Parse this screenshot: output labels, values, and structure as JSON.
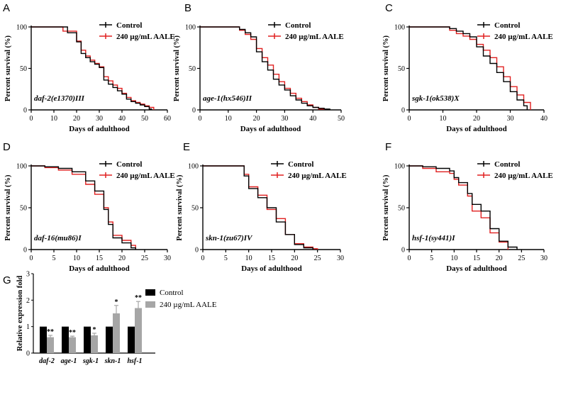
{
  "colors": {
    "control": "#000000",
    "treated": "#e02020",
    "bar_control": "#000000",
    "bar_treated": "#a6a6a6"
  },
  "legend": {
    "control": "Control",
    "treated": "240 µg/mL AALE"
  },
  "chart_data": [
    {
      "panel": "A",
      "type": "line",
      "annotation": "daf-2(e1370)III",
      "xlabel": "Days of adulthood",
      "ylabel": "Percent survival (%)",
      "xlim": [
        0,
        60
      ],
      "xticks": [
        0,
        10,
        20,
        30,
        40,
        50,
        60
      ],
      "ylim": [
        0,
        100
      ],
      "yticks": [
        0,
        50,
        100
      ],
      "series": [
        {
          "name": "Control",
          "x": [
            0,
            12,
            16,
            20,
            22,
            24,
            26,
            28,
            30,
            32,
            34,
            36,
            38,
            40,
            42,
            44,
            46,
            48,
            50,
            52,
            53
          ],
          "y": [
            100,
            100,
            93,
            82,
            68,
            63,
            58,
            55,
            51,
            36,
            31,
            27,
            23,
            19,
            13,
            10,
            8,
            6,
            4,
            1,
            0
          ]
        },
        {
          "name": "240 µg/mL AALE",
          "x": [
            0,
            12,
            14,
            20,
            22,
            24,
            26,
            28,
            30,
            32,
            34,
            36,
            38,
            40,
            42,
            44,
            46,
            48,
            50,
            52,
            54
          ],
          "y": [
            100,
            100,
            95,
            83,
            72,
            65,
            60,
            56,
            52,
            40,
            35,
            30,
            26,
            20,
            15,
            11,
            9,
            7,
            5,
            3,
            0
          ]
        }
      ]
    },
    {
      "panel": "B",
      "type": "line",
      "annotation": "age-1(hx546)II",
      "xlabel": "Days of adulthood",
      "ylabel": "Percent survival (%)",
      "xlim": [
        0,
        50
      ],
      "xticks": [
        0,
        10,
        20,
        30,
        40,
        50
      ],
      "ylim": [
        0,
        100
      ],
      "yticks": [
        0,
        50,
        100
      ],
      "series": [
        {
          "name": "Control",
          "x": [
            0,
            12,
            14,
            16,
            18,
            20,
            22,
            24,
            26,
            28,
            30,
            32,
            34,
            36,
            38,
            40,
            42,
            44,
            46
          ],
          "y": [
            100,
            100,
            97,
            93,
            88,
            70,
            58,
            48,
            37,
            30,
            24,
            17,
            12,
            8,
            5,
            3,
            2,
            1,
            0
          ]
        },
        {
          "name": "240 µg/mL AALE",
          "x": [
            0,
            12,
            14,
            16,
            18,
            20,
            22,
            24,
            26,
            28,
            30,
            32,
            34,
            36,
            38,
            40,
            42,
            44
          ],
          "y": [
            100,
            100,
            96,
            91,
            85,
            74,
            63,
            54,
            43,
            34,
            26,
            20,
            14,
            10,
            6,
            3,
            1,
            0
          ]
        }
      ]
    },
    {
      "panel": "C",
      "type": "line",
      "annotation": "sgk-1(ok538)X",
      "xlabel": "Days of adulthood",
      "ylabel": "Percent survival (%)",
      "xlim": [
        0,
        40
      ],
      "xticks": [
        0,
        10,
        20,
        30,
        40
      ],
      "ylim": [
        0,
        100
      ],
      "yticks": [
        0,
        50,
        100
      ],
      "series": [
        {
          "name": "Control",
          "x": [
            0,
            10,
            12,
            14,
            16,
            18,
            20,
            22,
            24,
            26,
            28,
            30,
            32,
            34,
            35
          ],
          "y": [
            100,
            100,
            98,
            95,
            92,
            88,
            76,
            65,
            56,
            45,
            34,
            22,
            12,
            5,
            0
          ]
        },
        {
          "name": "240 µg/mL AALE",
          "x": [
            0,
            10,
            12,
            14,
            16,
            18,
            20,
            22,
            24,
            26,
            28,
            30,
            32,
            34,
            36
          ],
          "y": [
            100,
            100,
            96,
            92,
            89,
            85,
            79,
            72,
            63,
            52,
            40,
            28,
            18,
            9,
            0
          ]
        }
      ]
    },
    {
      "panel": "D",
      "type": "line",
      "annotation": "daf-16(mu86)I",
      "xlabel": "Days of adulthood",
      "ylabel": "Percent survival (%)",
      "xlim": [
        0,
        30
      ],
      "xticks": [
        0,
        5,
        10,
        15,
        20,
        25,
        30
      ],
      "ylim": [
        0,
        100
      ],
      "yticks": [
        0,
        50,
        100
      ],
      "series": [
        {
          "name": "Control",
          "x": [
            0,
            3,
            6,
            9,
            12,
            14,
            16,
            17,
            18,
            20,
            22,
            23
          ],
          "y": [
            100,
            99,
            97,
            93,
            82,
            70,
            48,
            30,
            14,
            8,
            2,
            0
          ]
        },
        {
          "name": "240 µg/mL AALE",
          "x": [
            0,
            3,
            6,
            9,
            12,
            14,
            16,
            17,
            18,
            20,
            22,
            23
          ],
          "y": [
            100,
            98,
            95,
            90,
            78,
            66,
            50,
            33,
            17,
            11,
            5,
            0
          ]
        }
      ]
    },
    {
      "panel": "E",
      "type": "line",
      "annotation": "skn-1(zu67)IV",
      "xlabel": "Days of adulthood",
      "ylabel": "Percent survival (%)",
      "xlim": [
        0,
        30
      ],
      "xticks": [
        0,
        5,
        10,
        15,
        20,
        25,
        30
      ],
      "ylim": [
        0,
        100
      ],
      "yticks": [
        0,
        50,
        100
      ],
      "series": [
        {
          "name": "Control",
          "x": [
            0,
            8,
            9,
            10,
            12,
            14,
            16,
            18,
            20,
            22,
            24
          ],
          "y": [
            100,
            100,
            88,
            73,
            62,
            50,
            33,
            18,
            6,
            2,
            0
          ]
        },
        {
          "name": "240 µg/mL AALE",
          "x": [
            0,
            8,
            9,
            10,
            12,
            14,
            16,
            18,
            20,
            22,
            24,
            25
          ],
          "y": [
            100,
            100,
            90,
            75,
            65,
            48,
            37,
            18,
            7,
            3,
            1,
            0
          ]
        }
      ]
    },
    {
      "panel": "F",
      "type": "line",
      "annotation": "hsf-1(sy441)I",
      "xlabel": "Days of adulthood",
      "ylabel": "Percent survival (%)",
      "xlim": [
        0,
        30
      ],
      "xticks": [
        0,
        5,
        10,
        15,
        20,
        25,
        30
      ],
      "ylim": [
        0,
        100
      ],
      "yticks": [
        0,
        50,
        100
      ],
      "series": [
        {
          "name": "Control",
          "x": [
            0,
            3,
            6,
            9,
            10,
            11,
            13,
            14,
            16,
            18,
            20,
            22,
            24
          ],
          "y": [
            100,
            99,
            97,
            94,
            86,
            80,
            67,
            54,
            46,
            25,
            10,
            3,
            0
          ]
        },
        {
          "name": "240 µg/mL AALE",
          "x": [
            0,
            3,
            6,
            9,
            10,
            11,
            13,
            14,
            16,
            18,
            20,
            22
          ],
          "y": [
            100,
            97,
            93,
            91,
            84,
            77,
            64,
            46,
            38,
            20,
            9,
            0
          ]
        }
      ]
    },
    {
      "panel": "G",
      "type": "bar",
      "ylabel": "Relative expression fold",
      "ylim": [
        0,
        3
      ],
      "yticks": [
        0,
        1,
        2,
        3
      ],
      "categories": [
        "daf-2",
        "age-1",
        "sgk-1",
        "skn-1",
        "hsf-1"
      ],
      "series": [
        {
          "name": "Control",
          "values": [
            1,
            1,
            1,
            1,
            1
          ]
        },
        {
          "name": "240 µg/mL AALE",
          "values": [
            0.6,
            0.6,
            0.67,
            1.5,
            1.7
          ],
          "errors": [
            0.07,
            0.04,
            0.08,
            0.3,
            0.25
          ],
          "significance": [
            "**",
            "**",
            "*",
            "*",
            "**"
          ]
        }
      ]
    }
  ]
}
